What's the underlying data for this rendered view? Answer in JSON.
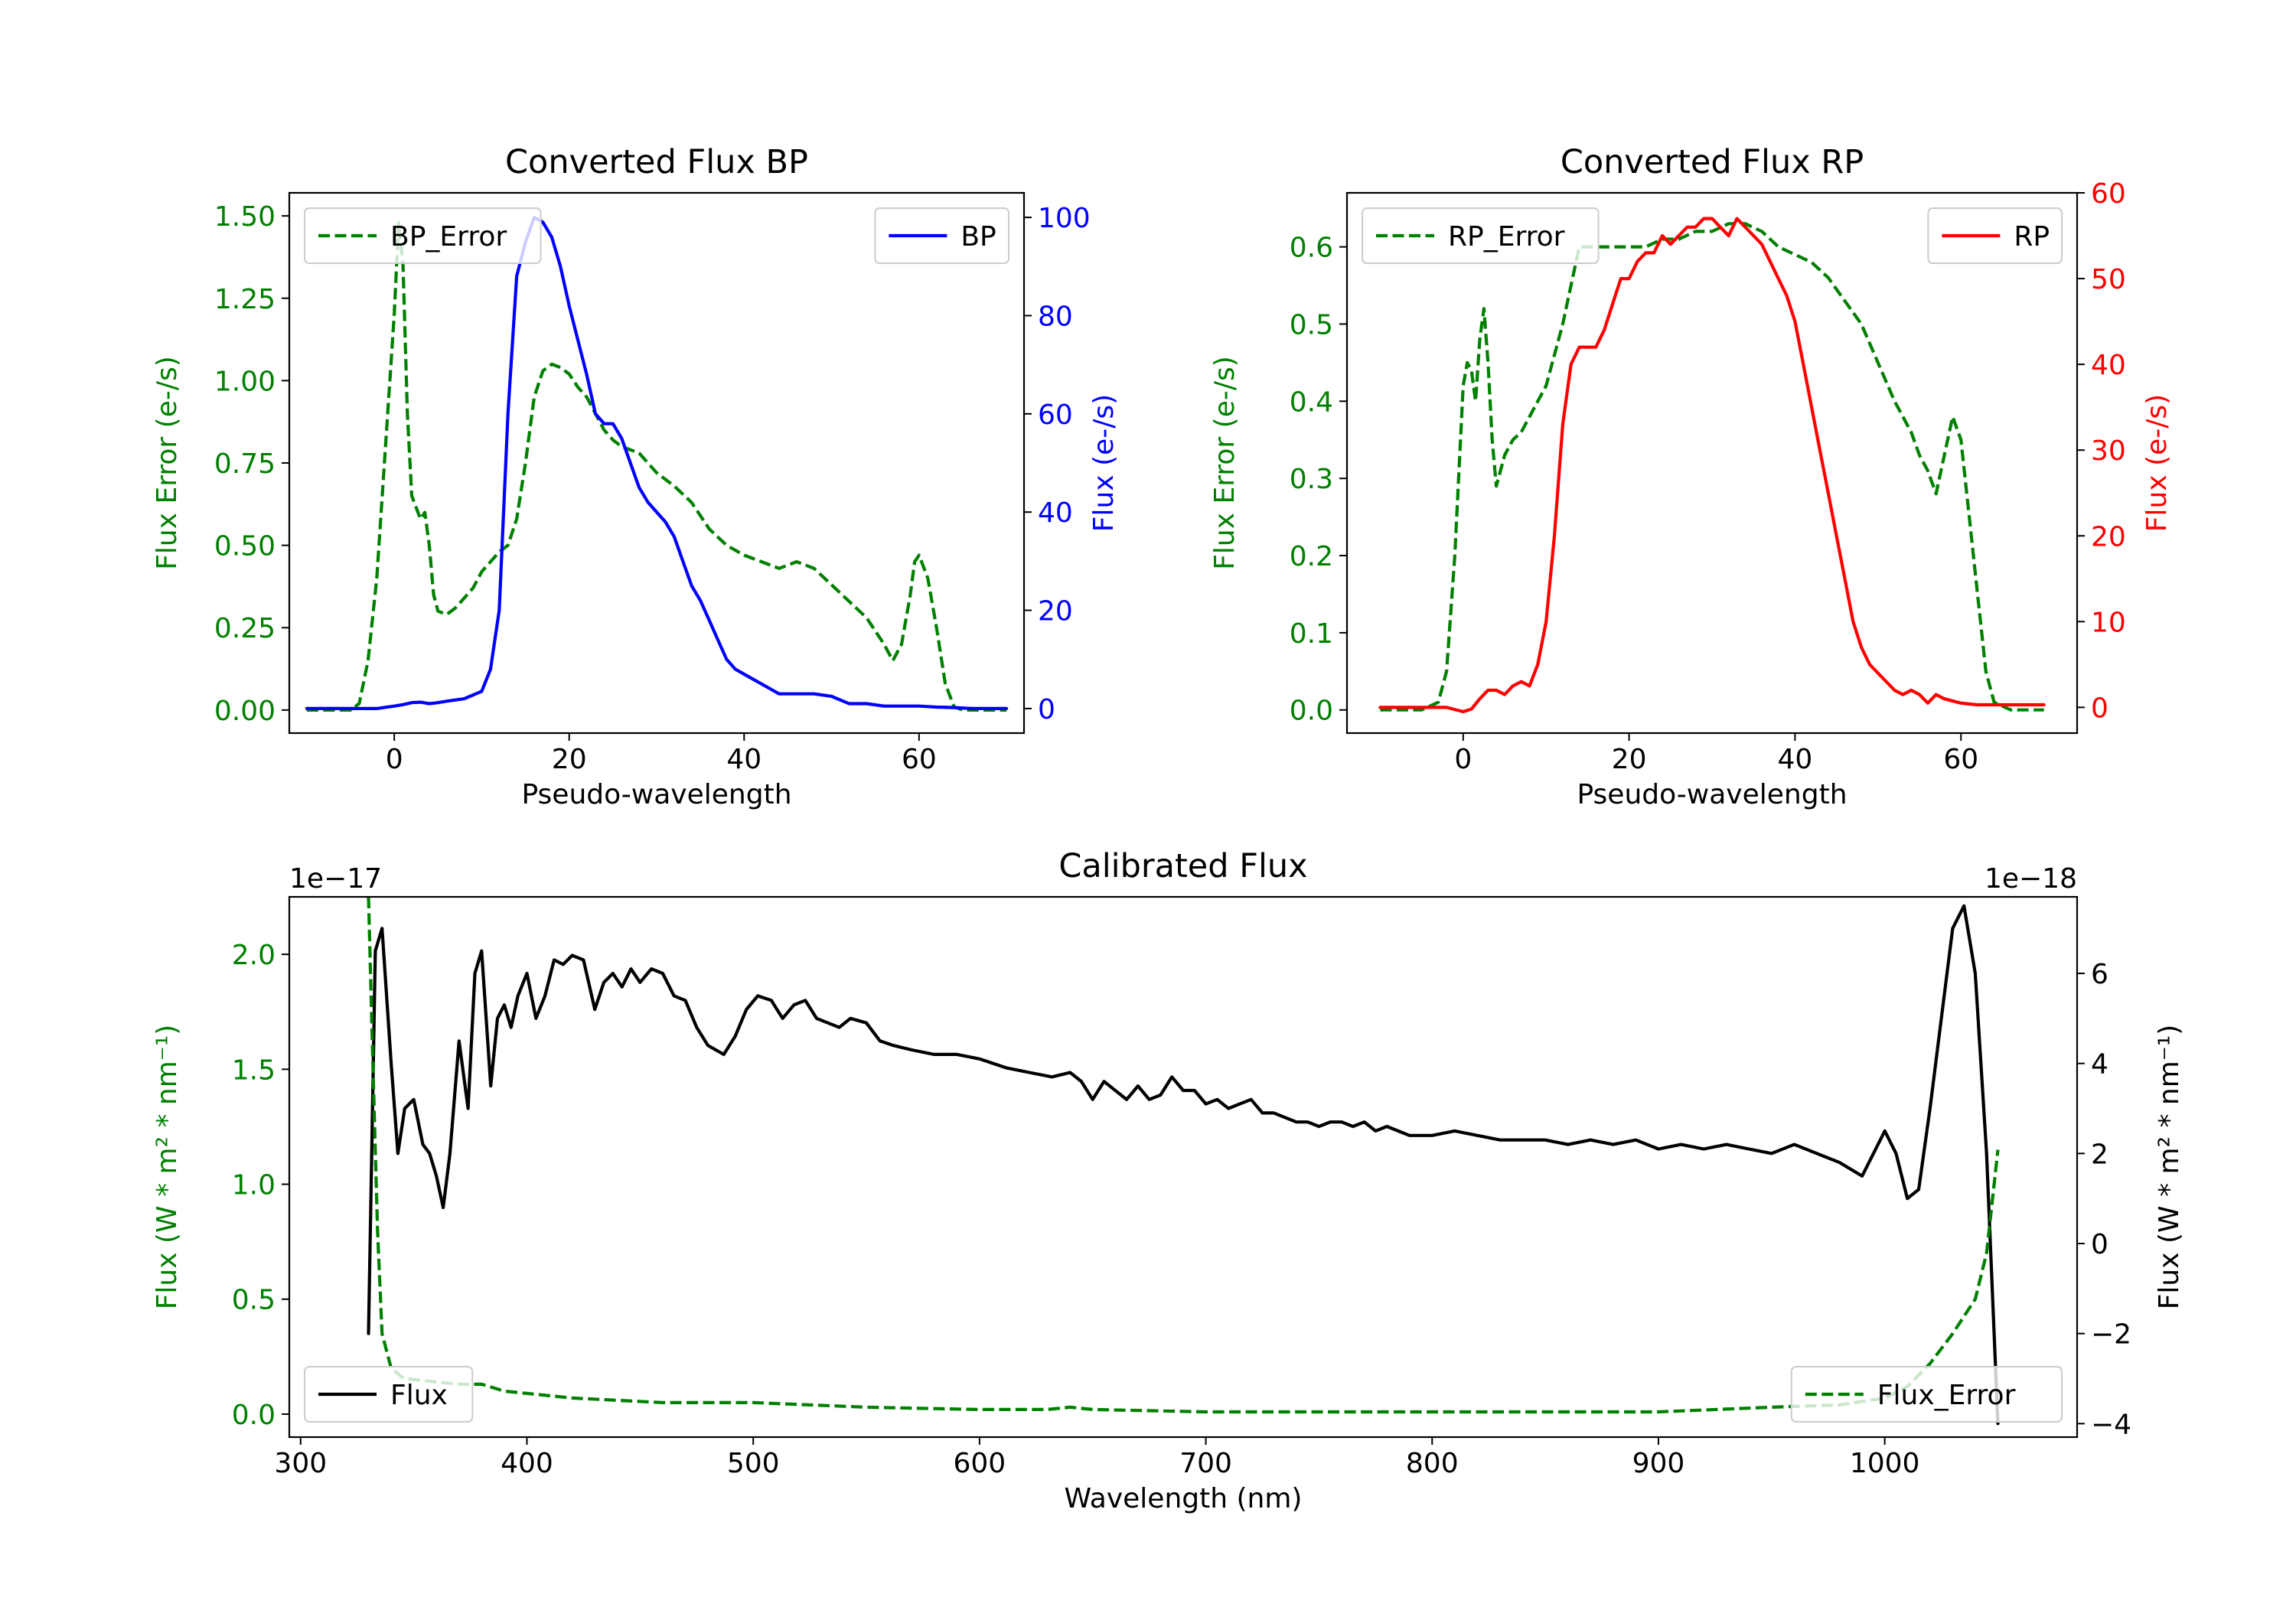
{
  "colors": {
    "error": "#008000",
    "bp": "#0000ff",
    "rp": "#ff0000",
    "flux": "#000000",
    "axis": "#000000"
  },
  "chart_data": [
    {
      "id": "bp",
      "type": "line",
      "title": "Converted Flux BP",
      "xlabel": "Pseudo-wavelength",
      "xlim": [
        -12,
        72
      ],
      "xticks": [
        0,
        20,
        40,
        60
      ],
      "left_axis": {
        "label": "Flux Error (e-/s)",
        "lim": [
          -0.07,
          1.57
        ],
        "ticks": [
          0.0,
          0.25,
          0.5,
          0.75,
          1.0,
          1.25,
          1.5
        ],
        "tick_labels": [
          "0.00",
          "0.25",
          "0.50",
          "0.75",
          "1.00",
          "1.25",
          "1.50"
        ]
      },
      "right_axis": {
        "label": "Flux (e-/s)",
        "lim": [
          -5,
          105
        ],
        "ticks": [
          0,
          20,
          40,
          60,
          80,
          100
        ],
        "tick_labels": [
          "0",
          "20",
          "40",
          "60",
          "80",
          "100"
        ]
      },
      "series": [
        {
          "name": "BP_Error",
          "axis": "left",
          "style": "dashed",
          "color_key": "error",
          "x": [
            -10,
            -5,
            -4,
            -3,
            -2,
            -1,
            0,
            0.5,
            1,
            1.5,
            2,
            3,
            3.5,
            4,
            4.5,
            5,
            6,
            7,
            8,
            9,
            10,
            11,
            12,
            13,
            14,
            15,
            16,
            17,
            18,
            19,
            20,
            21,
            22,
            23,
            24,
            25,
            26,
            28,
            30,
            32,
            34,
            36,
            38,
            40,
            42,
            44,
            46,
            48,
            50,
            52,
            54,
            56,
            57,
            58,
            59,
            59.5,
            60,
            61,
            62,
            63,
            64,
            65,
            66,
            68,
            70
          ],
          "y": [
            0,
            0,
            0.02,
            0.15,
            0.4,
            0.8,
            1.2,
            1.48,
            1.35,
            0.9,
            0.65,
            0.58,
            0.6,
            0.5,
            0.35,
            0.3,
            0.29,
            0.31,
            0.34,
            0.37,
            0.42,
            0.45,
            0.48,
            0.5,
            0.58,
            0.75,
            0.95,
            1.03,
            1.05,
            1.04,
            1.02,
            0.98,
            0.95,
            0.9,
            0.85,
            0.82,
            0.8,
            0.78,
            0.72,
            0.68,
            0.63,
            0.55,
            0.5,
            0.47,
            0.45,
            0.43,
            0.45,
            0.43,
            0.38,
            0.33,
            0.28,
            0.2,
            0.15,
            0.2,
            0.35,
            0.45,
            0.47,
            0.4,
            0.25,
            0.08,
            0.01,
            0,
            0,
            0,
            0
          ]
        },
        {
          "name": "BP",
          "axis": "right",
          "style": "solid",
          "color_key": "bp",
          "x": [
            -10,
            -5,
            -2,
            0,
            1,
            2,
            3,
            4,
            5,
            6,
            8,
            10,
            11,
            12,
            13,
            14,
            15,
            16,
            17,
            18,
            19,
            20,
            21,
            22,
            23,
            24,
            25,
            26,
            27,
            28,
            29,
            30,
            31,
            32,
            33,
            34,
            35,
            36,
            37,
            38,
            39,
            40,
            42,
            44,
            46,
            48,
            50,
            52,
            54,
            56,
            58,
            60,
            62,
            64,
            66,
            68,
            70
          ],
          "y": [
            0,
            0,
            0,
            0.5,
            0.8,
            1.2,
            1.3,
            1,
            1.2,
            1.5,
            2,
            3.5,
            8,
            20,
            60,
            88,
            95,
            100,
            99,
            96,
            90,
            82,
            75,
            68,
            60,
            58,
            58,
            55,
            50,
            45,
            42,
            40,
            38,
            35,
            30,
            25,
            22,
            18,
            14,
            10,
            8,
            7,
            5,
            3,
            3,
            3,
            2.5,
            1,
            1,
            0.5,
            0.5,
            0.5,
            0.3,
            0.2,
            0,
            0,
            0
          ]
        }
      ],
      "legends": [
        {
          "loc": "upper left",
          "entries": [
            "BP_Error"
          ]
        },
        {
          "loc": "upper right",
          "entries": [
            "BP"
          ]
        }
      ]
    },
    {
      "id": "rp",
      "type": "line",
      "title": "Converted Flux RP",
      "xlabel": "Pseudo-wavelength",
      "xlim": [
        -14,
        74
      ],
      "xticks": [
        0,
        20,
        40,
        60
      ],
      "left_axis": {
        "label": "Flux Error (e-/s)",
        "lim": [
          -0.03,
          0.67
        ],
        "ticks": [
          0.0,
          0.1,
          0.2,
          0.3,
          0.4,
          0.5,
          0.6
        ],
        "tick_labels": [
          "0.0",
          "0.1",
          "0.2",
          "0.3",
          "0.4",
          "0.5",
          "0.6"
        ]
      },
      "right_axis": {
        "label": "Flux (e-/s)",
        "lim": [
          -3,
          60
        ],
        "ticks": [
          0,
          10,
          20,
          30,
          40,
          50,
          60
        ],
        "tick_labels": [
          "0",
          "10",
          "20",
          "30",
          "40",
          "50",
          "60"
        ]
      },
      "series": [
        {
          "name": "RP_Error",
          "axis": "left",
          "style": "dashed",
          "color_key": "error",
          "x": [
            -10,
            -5,
            -3,
            -2,
            -1,
            0,
            0.5,
            1,
            1.5,
            2,
            2.5,
            3,
            3.5,
            4,
            5,
            6,
            7,
            8,
            10,
            12,
            14,
            15,
            16,
            18,
            20,
            22,
            24,
            26,
            28,
            30,
            32,
            34,
            36,
            38,
            40,
            42,
            44,
            46,
            48,
            50,
            52,
            54,
            55,
            56,
            57,
            58,
            59,
            60,
            61,
            62,
            63,
            64,
            66,
            70
          ],
          "y": [
            0,
            0,
            0.01,
            0.05,
            0.2,
            0.42,
            0.45,
            0.44,
            0.4,
            0.48,
            0.52,
            0.45,
            0.35,
            0.29,
            0.33,
            0.35,
            0.36,
            0.38,
            0.42,
            0.5,
            0.6,
            0.6,
            0.6,
            0.6,
            0.6,
            0.6,
            0.61,
            0.61,
            0.62,
            0.62,
            0.63,
            0.63,
            0.62,
            0.6,
            0.59,
            0.58,
            0.56,
            0.53,
            0.5,
            0.45,
            0.4,
            0.36,
            0.33,
            0.31,
            0.28,
            0.33,
            0.38,
            0.35,
            0.25,
            0.15,
            0.05,
            0.01,
            0,
            0
          ]
        },
        {
          "name": "RP",
          "axis": "right",
          "style": "solid",
          "color_key": "rp",
          "x": [
            -10,
            -5,
            -2,
            0,
            1,
            2,
            3,
            4,
            5,
            6,
            7,
            8,
            9,
            10,
            11,
            12,
            13,
            14,
            15,
            16,
            17,
            18,
            19,
            20,
            21,
            22,
            23,
            24,
            25,
            26,
            27,
            28,
            29,
            30,
            31,
            32,
            33,
            34,
            35,
            36,
            37,
            38,
            39,
            40,
            41,
            42,
            43,
            44,
            45,
            46,
            47,
            48,
            49,
            50,
            51,
            52,
            53,
            54,
            55,
            56,
            57,
            58,
            60,
            62,
            64,
            66,
            68,
            70
          ],
          "y": [
            0,
            0,
            0,
            -0.5,
            -0.2,
            1,
            2,
            2,
            1.5,
            2.5,
            3,
            2.5,
            5,
            10,
            20,
            33,
            40,
            42,
            42,
            42,
            44,
            47,
            50,
            50,
            52,
            53,
            53,
            55,
            54,
            55,
            56,
            56,
            57,
            57,
            56,
            55,
            57,
            56,
            55,
            54,
            52,
            50,
            48,
            45,
            40,
            35,
            30,
            25,
            20,
            15,
            10,
            7,
            5,
            4,
            3,
            2,
            1.5,
            2,
            1.5,
            0.5,
            1.5,
            1,
            0.5,
            0.3,
            0.3,
            0.3,
            0.3,
            0.3
          ]
        }
      ],
      "legends": [
        {
          "loc": "upper left",
          "entries": [
            "RP_Error"
          ]
        },
        {
          "loc": "upper right",
          "entries": [
            "RP"
          ]
        }
      ]
    },
    {
      "id": "cal",
      "type": "line",
      "title": "Calibrated Flux",
      "xlabel": "Wavelength (nm)",
      "xlim": [
        295,
        1085
      ],
      "xticks": [
        300,
        400,
        500,
        600,
        700,
        800,
        900,
        1000
      ],
      "left_axis": {
        "label": "Flux (W * m² * nm⁻¹)",
        "offset_text": "1e−17",
        "lim": [
          -0.1,
          2.25
        ],
        "ticks": [
          0.0,
          0.5,
          1.0,
          1.5,
          2.0
        ],
        "tick_labels": [
          "0.0",
          "0.5",
          "1.0",
          "1.5",
          "2.0"
        ]
      },
      "right_axis": {
        "label": "Flux (W * m² * nm⁻¹)",
        "offset_text": "1e−18",
        "lim": [
          -4.3,
          7.7
        ],
        "ticks": [
          -4,
          -2,
          0,
          2,
          4,
          6
        ],
        "tick_labels": [
          "−4",
          "−2",
          "0",
          "2",
          "4",
          "6"
        ]
      },
      "series": [
        {
          "name": "Flux",
          "axis": "right",
          "style": "solid",
          "color_key": "flux",
          "x": [
            330,
            333,
            336,
            340,
            343,
            346,
            350,
            354,
            357,
            360,
            363,
            366,
            370,
            374,
            377,
            380,
            384,
            387,
            390,
            393,
            396,
            400,
            404,
            408,
            412,
            416,
            420,
            425,
            430,
            434,
            438,
            442,
            446,
            450,
            455,
            460,
            465,
            470,
            475,
            480,
            487,
            492,
            497,
            502,
            508,
            513,
            518,
            523,
            528,
            533,
            538,
            543,
            550,
            556,
            562,
            570,
            580,
            590,
            600,
            612,
            622,
            632,
            640,
            645,
            650,
            655,
            660,
            665,
            670,
            675,
            680,
            685,
            690,
            695,
            700,
            705,
            710,
            715,
            720,
            725,
            730,
            735,
            740,
            745,
            750,
            755,
            760,
            765,
            770,
            775,
            780,
            790,
            800,
            810,
            820,
            830,
            840,
            850,
            860,
            870,
            880,
            890,
            900,
            910,
            920,
            930,
            940,
            950,
            960,
            970,
            980,
            990,
            1000,
            1005,
            1010,
            1015,
            1020,
            1025,
            1030,
            1035,
            1040,
            1045,
            1050
          ],
          "y": [
            -2,
            6.5,
            7,
            4,
            2,
            3,
            3.2,
            2.2,
            2,
            1.5,
            0.8,
            2,
            4.5,
            3,
            6,
            6.5,
            3.5,
            5,
            5.3,
            4.8,
            5.5,
            6,
            5,
            5.5,
            6.3,
            6.2,
            6.4,
            6.3,
            5.2,
            5.8,
            6,
            5.7,
            6.1,
            5.8,
            6.1,
            6,
            5.5,
            5.4,
            4.8,
            4.4,
            4.2,
            4.6,
            5.2,
            5.5,
            5.4,
            5,
            5.3,
            5.4,
            5,
            4.9,
            4.8,
            5,
            4.9,
            4.5,
            4.4,
            4.3,
            4.2,
            4.2,
            4.1,
            3.9,
            3.8,
            3.7,
            3.8,
            3.6,
            3.2,
            3.6,
            3.4,
            3.2,
            3.5,
            3.2,
            3.3,
            3.7,
            3.4,
            3.4,
            3.1,
            3.2,
            3.0,
            3.1,
            3.2,
            2.9,
            2.9,
            2.8,
            2.7,
            2.7,
            2.6,
            2.7,
            2.7,
            2.6,
            2.7,
            2.5,
            2.6,
            2.4,
            2.4,
            2.5,
            2.4,
            2.3,
            2.3,
            2.3,
            2.2,
            2.3,
            2.2,
            2.3,
            2.1,
            2.2,
            2.1,
            2.2,
            2.1,
            2.0,
            2.2,
            2.0,
            1.8,
            1.5,
            2.5,
            2.0,
            1.0,
            1.2,
            3.0,
            5.0,
            7.0,
            7.5,
            6.0,
            2.0,
            -4.0
          ]
        },
        {
          "name": "Flux_Error",
          "axis": "left",
          "style": "dashed",
          "color_key": "error",
          "x": [
            330,
            332,
            334,
            336,
            340,
            345,
            350,
            360,
            370,
            380,
            390,
            400,
            420,
            440,
            460,
            500,
            550,
            600,
            630,
            640,
            650,
            700,
            750,
            800,
            850,
            900,
            950,
            980,
            1000,
            1010,
            1020,
            1030,
            1040,
            1045,
            1050
          ],
          "y": [
            2.25,
            1.5,
            0.8,
            0.35,
            0.2,
            0.16,
            0.15,
            0.14,
            0.13,
            0.13,
            0.1,
            0.09,
            0.07,
            0.06,
            0.05,
            0.05,
            0.03,
            0.02,
            0.02,
            0.03,
            0.02,
            0.01,
            0.01,
            0.01,
            0.01,
            0.01,
            0.03,
            0.04,
            0.07,
            0.12,
            0.22,
            0.35,
            0.5,
            0.7,
            1.15
          ]
        }
      ],
      "legends": [
        {
          "loc": "lower left",
          "entries": [
            "Flux"
          ]
        },
        {
          "loc": "lower right",
          "entries": [
            "Flux_Error"
          ]
        }
      ]
    }
  ]
}
